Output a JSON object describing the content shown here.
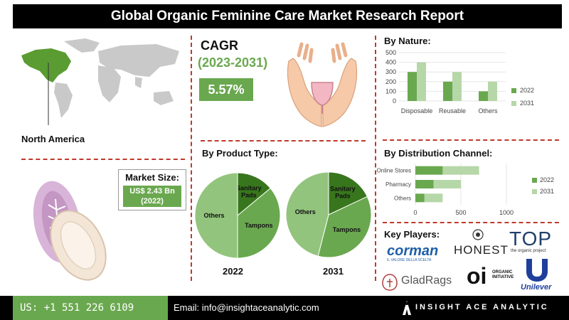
{
  "header": {
    "title": "Global Organic Feminine Care Market Research Report"
  },
  "region": {
    "label": "North America"
  },
  "market_size": {
    "title": "Market Size:",
    "value": "US$ 2.43 Bn",
    "year": "(2022)"
  },
  "cagr": {
    "title": "CAGR",
    "period": "(2023-2031)",
    "value": "5.57%"
  },
  "sections": {
    "by_nature": "By Nature:",
    "by_product": "By Product Type:",
    "by_channel": "By Distribution Channel:",
    "key_players": "Key Players:"
  },
  "colors": {
    "dark_green": "#6aa84f",
    "light_green": "#b6d7a8",
    "pie_dark": "#38761d",
    "pie_mid": "#6aa84f",
    "pie_light": "#93c47d",
    "dash": "#c0392b"
  },
  "chart_data": [
    {
      "id": "nature",
      "type": "bar",
      "categories": [
        "Disposable",
        "Reusable",
        "Others"
      ],
      "series": [
        {
          "name": "2022",
          "values": [
            300,
            200,
            100
          ]
        },
        {
          "name": "2031",
          "values": [
            400,
            300,
            200
          ]
        }
      ],
      "ylim": [
        0,
        500
      ],
      "yticks": [
        "0",
        "100",
        "200",
        "300",
        "400",
        "500"
      ],
      "legend": "right"
    },
    {
      "id": "product",
      "type": "pie",
      "pies": [
        {
          "year": "2022",
          "slices": [
            {
              "label": "Sanitary Pads",
              "value": 14
            },
            {
              "label": "Tampons",
              "value": 36
            },
            {
              "label": "Others",
              "value": 50
            }
          ]
        },
        {
          "year": "2031",
          "slices": [
            {
              "label": "Sanitary Pads",
              "value": 18
            },
            {
              "label": "Tampons",
              "value": 36
            },
            {
              "label": "Others",
              "value": 46
            }
          ]
        }
      ]
    },
    {
      "id": "channel",
      "type": "bar",
      "orientation": "horizontal",
      "categories": [
        "Online Stores",
        "Pharmacy",
        "Others"
      ],
      "series": [
        {
          "name": "2022",
          "values": [
            300,
            200,
            100
          ]
        },
        {
          "name": "2031",
          "values": [
            700,
            500,
            300
          ]
        }
      ],
      "xlim": [
        0,
        1000
      ],
      "xticks": [
        "0",
        "500",
        "1000"
      ],
      "legend": "right"
    }
  ],
  "players": {
    "corman": "corman",
    "corman_sub": "IL VALORE DELLA SCELTA",
    "honest": "HONEST",
    "top": "TOP",
    "top_sub": "the organic project",
    "gladrags": "GladRags",
    "oi": "oi",
    "oi_sub": "ORGANIC INITIATIVE",
    "unilever": "Unilever"
  },
  "footer": {
    "phone": "US: +1 551 226 6109",
    "email": "Email: info@insightaceanalytic.com",
    "brand": "INSIGHT ACE ANALYTIC"
  }
}
